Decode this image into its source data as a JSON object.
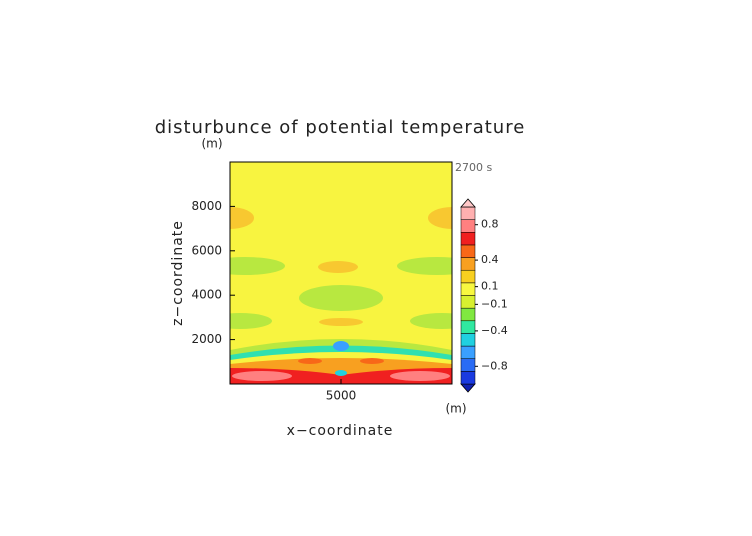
{
  "chart_data": {
    "type": "contour",
    "title": "disturbunce of potential temperature",
    "x_label": "x−coordinate",
    "y_label": "z−coordinate",
    "x_unit": "(m)",
    "y_unit": "(m)",
    "time_label": "2700 s",
    "xlim": [
      0,
      10000
    ],
    "ylim": [
      0,
      10000
    ],
    "xticks": [
      5000
    ],
    "yticks": [
      2000,
      4000,
      6000,
      8000
    ],
    "colorbar": {
      "lim": [
        -1,
        1
      ],
      "ticks": [
        {
          "value": -0.8,
          "label": "−0.8"
        },
        {
          "value": -0.4,
          "label": "−0.4"
        },
        {
          "value": -0.1,
          "label": "−0.1"
        },
        0.1,
        0.4,
        0.8
      ],
      "colors": [
        "#1020b0",
        "#1a3ae0",
        "#2a6cf5",
        "#3aa0ff",
        "#20d0e0",
        "#30e8a0",
        "#80e840",
        "#d8f030",
        "#f8f840",
        "#f8d020",
        "#f8a020",
        "#f86818",
        "#f02020",
        "#ff8080",
        "#ffb0b0",
        "#ffc8c8"
      ]
    }
  }
}
